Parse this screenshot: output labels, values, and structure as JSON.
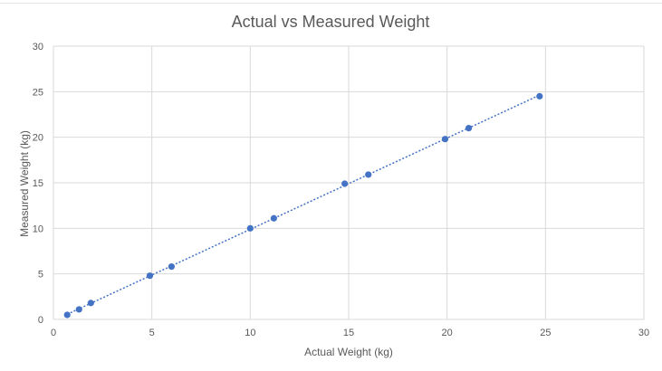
{
  "chart_data": {
    "type": "scatter",
    "title": "Actual vs Measured Weight",
    "xlabel": "Actual Weight (kg)",
    "ylabel": "Measured Weight (kg)",
    "xlim": [
      0,
      30
    ],
    "ylim": [
      0,
      30
    ],
    "xticks": [
      "0",
      "5",
      "10",
      "15",
      "20",
      "25",
      "30"
    ],
    "yticks": [
      "0",
      "5",
      "10",
      "15",
      "20",
      "25",
      "30"
    ],
    "grid": true,
    "legend": "none",
    "trendline": "linear, dotted",
    "points": [
      {
        "x": 0.7,
        "y": 0.5
      },
      {
        "x": 1.3,
        "y": 1.1
      },
      {
        "x": 1.9,
        "y": 1.8
      },
      {
        "x": 4.9,
        "y": 4.8
      },
      {
        "x": 6.0,
        "y": 5.8
      },
      {
        "x": 10.0,
        "y": 10.0
      },
      {
        "x": 11.2,
        "y": 11.1
      },
      {
        "x": 14.8,
        "y": 14.9
      },
      {
        "x": 16.0,
        "y": 15.9
      },
      {
        "x": 19.9,
        "y": 19.8
      },
      {
        "x": 21.1,
        "y": 21.0
      },
      {
        "x": 24.7,
        "y": 24.5
      }
    ],
    "colors": {
      "series": "#4472c4",
      "grid": "#d9d9d9",
      "text": "#595959"
    }
  }
}
